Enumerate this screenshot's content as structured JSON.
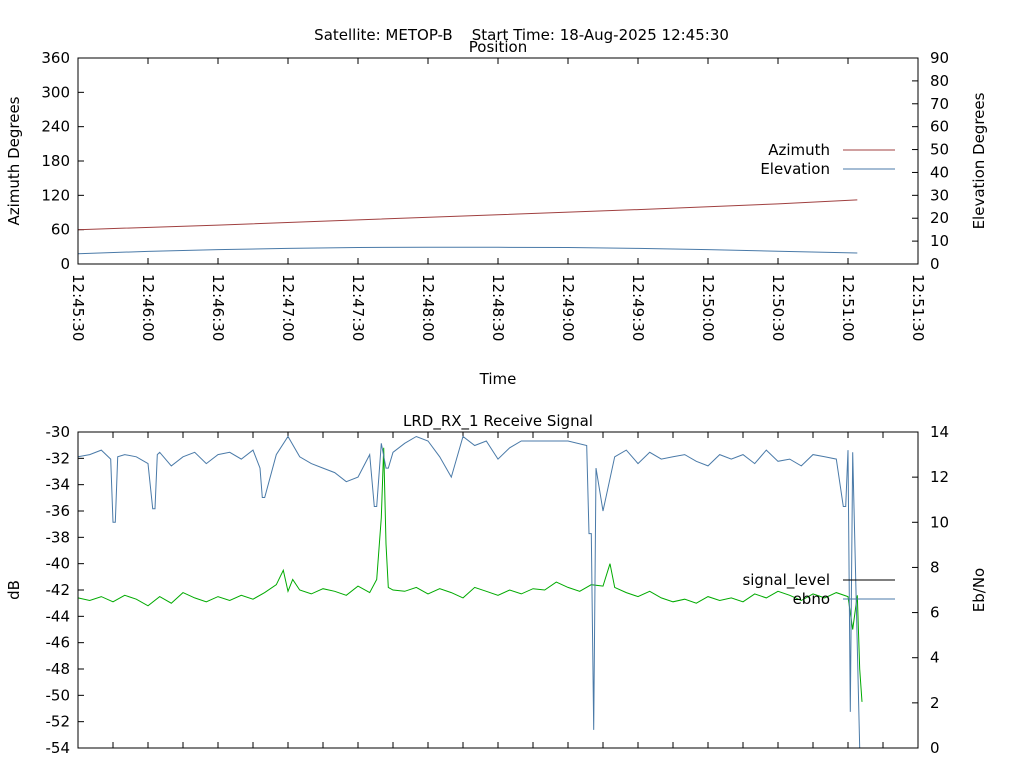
{
  "header": {
    "satellite_label": "Satellite: METOP-B",
    "start_time_label": "Start Time: 18-Aug-2025 12:45:30"
  },
  "chart_data": [
    {
      "type": "line",
      "title": "Position",
      "xlabel": "Time",
      "ylabel_left": "Azimuth Degrees",
      "ylabel_right": "Elevation Degrees",
      "x_ticks": [
        "12:45:30",
        "12:46:00",
        "12:46:30",
        "12:47:00",
        "12:47:30",
        "12:48:00",
        "12:48:30",
        "12:49:00",
        "12:49:30",
        "12:50:00",
        "12:50:30",
        "12:51:00",
        "12:51:30"
      ],
      "y_left_ticks": [
        "0",
        "60",
        "120",
        "180",
        "240",
        "300",
        "360"
      ],
      "y_right_ticks": [
        "0",
        "10",
        "20",
        "30",
        "40",
        "50",
        "60",
        "70",
        "80",
        "90"
      ],
      "y_left_range": [
        0,
        360
      ],
      "y_right_range": [
        0,
        90
      ],
      "x_range_seconds": [
        0,
        360
      ],
      "legend_position": "right",
      "colors": {
        "azimuth": "#a04040",
        "elevation": "#4a7aa8"
      },
      "series": [
        {
          "name": "Azimuth",
          "axis": "left",
          "x": [
            0,
            60,
            120,
            180,
            240,
            300,
            334
          ],
          "values": [
            60,
            68,
            77,
            86,
            95,
            105,
            112
          ]
        },
        {
          "name": "Elevation",
          "axis": "right",
          "x": [
            0,
            30,
            60,
            90,
            120,
            150,
            180,
            210,
            240,
            270,
            300,
            334
          ],
          "values": [
            4.5,
            5.5,
            6.3,
            6.8,
            7.2,
            7.3,
            7.3,
            7.2,
            6.8,
            6.3,
            5.6,
            4.8
          ]
        }
      ]
    },
    {
      "type": "line",
      "title": "LRD_RX_1 Receive Signal",
      "xlabel": "",
      "ylabel_left": "dB",
      "ylabel_right": "Eb/No",
      "y_left_ticks": [
        "-30",
        "-32",
        "-34",
        "-36",
        "-38",
        "-40",
        "-42",
        "-44",
        "-46",
        "-48",
        "-50",
        "-52",
        "-54"
      ],
      "y_right_ticks": [
        "0",
        "2",
        "4",
        "6",
        "8",
        "10",
        "12",
        "14"
      ],
      "y_left_range": [
        -54,
        -30
      ],
      "y_right_range": [
        0,
        14
      ],
      "x_range_seconds": [
        0,
        360
      ],
      "x_minor_ticks": 24,
      "legend_position": "right",
      "colors": {
        "signal_level": "#00aa00",
        "ebno": "#4a7aa8"
      },
      "legend_line_colors": {
        "signal_level": "#000000",
        "ebno": "#4a7aa8"
      },
      "series": [
        {
          "name": "signal_level",
          "axis": "left",
          "x": [
            0,
            5,
            10,
            15,
            20,
            25,
            30,
            35,
            40,
            45,
            50,
            55,
            60,
            65,
            70,
            75,
            80,
            85,
            88,
            90,
            92,
            95,
            100,
            105,
            110,
            115,
            120,
            125,
            128,
            130,
            131,
            132,
            133,
            135,
            140,
            145,
            150,
            155,
            160,
            165,
            170,
            175,
            180,
            185,
            190,
            195,
            200,
            205,
            210,
            215,
            220,
            225,
            228,
            230,
            235,
            240,
            245,
            250,
            255,
            260,
            265,
            270,
            275,
            280,
            285,
            290,
            295,
            300,
            305,
            310,
            315,
            320,
            325,
            330,
            332,
            334,
            335,
            336
          ],
          "values": [
            -42.6,
            -42.8,
            -42.5,
            -42.9,
            -42.4,
            -42.7,
            -43.2,
            -42.5,
            -43,
            -42.2,
            -42.6,
            -42.9,
            -42.5,
            -42.8,
            -42.4,
            -42.7,
            -42.2,
            -41.6,
            -40.5,
            -42.1,
            -41.2,
            -42,
            -42.3,
            -41.9,
            -42.1,
            -42.4,
            -41.7,
            -42.2,
            -41.2,
            -36.5,
            -31.2,
            -38.5,
            -41.8,
            -42,
            -42.1,
            -41.8,
            -42.3,
            -41.9,
            -42.2,
            -42.6,
            -41.8,
            -42.1,
            -42.4,
            -42,
            -42.3,
            -41.9,
            -42,
            -41.4,
            -41.8,
            -42.1,
            -41.6,
            -41.7,
            -40,
            -41.8,
            -42.2,
            -42.5,
            -42.1,
            -42.6,
            -42.9,
            -42.7,
            -43,
            -42.5,
            -42.8,
            -42.6,
            -42.9,
            -42.3,
            -42.6,
            -42.1,
            -42.4,
            -42.8,
            -42.3,
            -42.6,
            -42.2,
            -42.5,
            -45,
            -42.4,
            -48,
            -50.5
          ]
        },
        {
          "name": "ebno",
          "axis": "right",
          "x": [
            0,
            5,
            10,
            14,
            15,
            16,
            17,
            20,
            25,
            30,
            32,
            33,
            34,
            35,
            40,
            45,
            50,
            55,
            60,
            65,
            70,
            75,
            78,
            79,
            80,
            85,
            90,
            95,
            100,
            105,
            110,
            115,
            120,
            125,
            120,
            125,
            127,
            128,
            130,
            132,
            133,
            135,
            140,
            145,
            150,
            155,
            160,
            165,
            170,
            175,
            180,
            185,
            190,
            195,
            200,
            210,
            218,
            219,
            220,
            221,
            222,
            225,
            230,
            235,
            240,
            245,
            250,
            255,
            260,
            265,
            270,
            275,
            280,
            285,
            290,
            295,
            300,
            305,
            310,
            315,
            320,
            325,
            328,
            329,
            330,
            331,
            332,
            335,
            336
          ],
          "values": [
            12.9,
            13.0,
            13.2,
            12.8,
            10.0,
            10.0,
            12.9,
            13.0,
            12.9,
            12.6,
            10.6,
            10.6,
            13.0,
            13.1,
            12.5,
            12.9,
            13.1,
            12.6,
            13.0,
            13.1,
            12.8,
            13.2,
            12.4,
            11.1,
            11.1,
            13.0,
            13.8,
            12.9,
            12.6,
            12.4,
            12.2,
            11.8,
            12.0,
            13.0,
            12.0,
            13.0,
            10.7,
            10.7,
            13.5,
            12.4,
            12.4,
            13.1,
            13.5,
            13.8,
            13.6,
            12.9,
            12.0,
            13.8,
            13.4,
            13.6,
            12.8,
            13.3,
            13.6,
            13.6,
            13.6,
            13.6,
            13.4,
            9.5,
            9.5,
            0.8,
            12.4,
            10.5,
            12.9,
            13.2,
            12.6,
            13.1,
            12.8,
            12.9,
            13.0,
            12.7,
            12.5,
            13.0,
            12.8,
            13.0,
            12.6,
            13.2,
            12.7,
            12.8,
            12.5,
            13.0,
            12.9,
            12.8,
            10.7,
            10.7,
            13.2,
            1.6,
            13.1,
            0.0,
            0.0
          ]
        }
      ]
    }
  ]
}
